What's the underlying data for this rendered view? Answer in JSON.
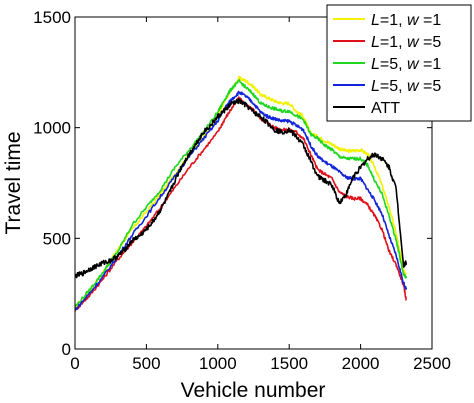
{
  "chart_data": {
    "type": "line",
    "xlabel": "Vehicle number",
    "ylabel": "Travel time",
    "xlim": [
      0,
      2500
    ],
    "ylim": [
      0,
      1500
    ],
    "xticks": [
      0,
      500,
      1000,
      1500,
      2000,
      2500
    ],
    "yticks": [
      0,
      500,
      1000,
      1500
    ],
    "xtick_labels": [
      "0",
      "500",
      "1000",
      "1500",
      "2000",
      "2500"
    ],
    "ytick_labels": [
      "0",
      "500",
      "1000",
      "1500"
    ],
    "grid": false,
    "legend_position": "top-right",
    "series": [
      {
        "name": "L=1, w=1",
        "label_parts": [
          [
            "L",
            true
          ],
          [
            "=1, ",
            false
          ],
          [
            "w",
            true
          ],
          [
            " =1",
            false
          ]
        ],
        "color": "#f2f200",
        "points": [
          [
            0,
            190
          ],
          [
            100,
            260
          ],
          [
            200,
            350
          ],
          [
            300,
            450
          ],
          [
            400,
            540
          ],
          [
            500,
            620
          ],
          [
            600,
            700
          ],
          [
            700,
            790
          ],
          [
            800,
            880
          ],
          [
            900,
            960
          ],
          [
            1000,
            1050
          ],
          [
            1050,
            1120
          ],
          [
            1100,
            1175
          ],
          [
            1150,
            1225
          ],
          [
            1200,
            1210
          ],
          [
            1250,
            1185
          ],
          [
            1300,
            1150
          ],
          [
            1350,
            1135
          ],
          [
            1400,
            1120
          ],
          [
            1450,
            1110
          ],
          [
            1500,
            1110
          ],
          [
            1550,
            1075
          ],
          [
            1600,
            1050
          ],
          [
            1650,
            975
          ],
          [
            1700,
            960
          ],
          [
            1750,
            940
          ],
          [
            1800,
            925
          ],
          [
            1850,
            905
          ],
          [
            1900,
            895
          ],
          [
            1950,
            895
          ],
          [
            2000,
            900
          ],
          [
            2050,
            880
          ],
          [
            2100,
            820
          ],
          [
            2150,
            740
          ],
          [
            2200,
            640
          ],
          [
            2250,
            520
          ],
          [
            2300,
            360
          ],
          [
            2320,
            340
          ]
        ]
      },
      {
        "name": "L=1, w=5",
        "label_parts": [
          [
            "L",
            true
          ],
          [
            "=1, ",
            false
          ],
          [
            "w",
            true
          ],
          [
            " =5",
            false
          ]
        ],
        "color": "#e0101a",
        "points": [
          [
            0,
            175
          ],
          [
            100,
            240
          ],
          [
            200,
            320
          ],
          [
            300,
            405
          ],
          [
            400,
            480
          ],
          [
            500,
            555
          ],
          [
            600,
            640
          ],
          [
            700,
            730
          ],
          [
            800,
            820
          ],
          [
            900,
            900
          ],
          [
            1000,
            980
          ],
          [
            1050,
            1040
          ],
          [
            1100,
            1090
          ],
          [
            1150,
            1135
          ],
          [
            1200,
            1100
          ],
          [
            1250,
            1080
          ],
          [
            1300,
            1040
          ],
          [
            1350,
            1020
          ],
          [
            1400,
            1000
          ],
          [
            1450,
            990
          ],
          [
            1500,
            990
          ],
          [
            1550,
            980
          ],
          [
            1600,
            950
          ],
          [
            1650,
            880
          ],
          [
            1700,
            810
          ],
          [
            1750,
            790
          ],
          [
            1800,
            770
          ],
          [
            1850,
            710
          ],
          [
            1900,
            690
          ],
          [
            1950,
            680
          ],
          [
            2000,
            680
          ],
          [
            2050,
            650
          ],
          [
            2100,
            600
          ],
          [
            2150,
            540
          ],
          [
            2200,
            440
          ],
          [
            2250,
            380
          ],
          [
            2300,
            290
          ],
          [
            2320,
            220
          ]
        ]
      },
      {
        "name": "L=5, w=1",
        "label_parts": [
          [
            "L",
            true
          ],
          [
            "=5, ",
            false
          ],
          [
            "w",
            true
          ],
          [
            " =1",
            false
          ]
        ],
        "color": "#1fd620",
        "points": [
          [
            0,
            190
          ],
          [
            100,
            265
          ],
          [
            200,
            350
          ],
          [
            300,
            440
          ],
          [
            400,
            560
          ],
          [
            500,
            640
          ],
          [
            600,
            720
          ],
          [
            700,
            820
          ],
          [
            800,
            900
          ],
          [
            900,
            980
          ],
          [
            1000,
            1070
          ],
          [
            1050,
            1130
          ],
          [
            1100,
            1180
          ],
          [
            1150,
            1210
          ],
          [
            1200,
            1180
          ],
          [
            1250,
            1150
          ],
          [
            1300,
            1110
          ],
          [
            1350,
            1095
          ],
          [
            1400,
            1085
          ],
          [
            1450,
            1075
          ],
          [
            1500,
            1075
          ],
          [
            1550,
            1055
          ],
          [
            1600,
            1035
          ],
          [
            1650,
            970
          ],
          [
            1700,
            950
          ],
          [
            1750,
            920
          ],
          [
            1800,
            900
          ],
          [
            1850,
            870
          ],
          [
            1900,
            860
          ],
          [
            1950,
            860
          ],
          [
            2000,
            860
          ],
          [
            2050,
            830
          ],
          [
            2100,
            760
          ],
          [
            2150,
            700
          ],
          [
            2200,
            600
          ],
          [
            2250,
            490
          ],
          [
            2300,
            340
          ],
          [
            2320,
            320
          ]
        ]
      },
      {
        "name": "L=5, w=5",
        "label_parts": [
          [
            "L",
            true
          ],
          [
            "=5, ",
            false
          ],
          [
            "w",
            true
          ],
          [
            " =5",
            false
          ]
        ],
        "color": "#1224d8",
        "points": [
          [
            0,
            175
          ],
          [
            100,
            250
          ],
          [
            200,
            330
          ],
          [
            300,
            420
          ],
          [
            400,
            515
          ],
          [
            500,
            600
          ],
          [
            600,
            690
          ],
          [
            700,
            780
          ],
          [
            800,
            870
          ],
          [
            900,
            950
          ],
          [
            1000,
            1030
          ],
          [
            1050,
            1090
          ],
          [
            1100,
            1130
          ],
          [
            1150,
            1160
          ],
          [
            1200,
            1140
          ],
          [
            1250,
            1110
          ],
          [
            1300,
            1070
          ],
          [
            1350,
            1050
          ],
          [
            1400,
            1040
          ],
          [
            1450,
            1030
          ],
          [
            1500,
            1030
          ],
          [
            1550,
            1010
          ],
          [
            1600,
            990
          ],
          [
            1650,
            920
          ],
          [
            1700,
            870
          ],
          [
            1750,
            845
          ],
          [
            1800,
            825
          ],
          [
            1850,
            800
          ],
          [
            1900,
            775
          ],
          [
            1950,
            770
          ],
          [
            2000,
            770
          ],
          [
            2050,
            720
          ],
          [
            2100,
            670
          ],
          [
            2150,
            610
          ],
          [
            2200,
            510
          ],
          [
            2250,
            420
          ],
          [
            2300,
            300
          ],
          [
            2320,
            270
          ]
        ]
      },
      {
        "name": "ATT",
        "label_parts": [
          [
            "ATT",
            false
          ]
        ],
        "color": "#000000",
        "points": [
          [
            0,
            330
          ],
          [
            50,
            340
          ],
          [
            100,
            360
          ],
          [
            150,
            375
          ],
          [
            200,
            390
          ],
          [
            250,
            400
          ],
          [
            300,
            420
          ],
          [
            350,
            450
          ],
          [
            400,
            490
          ],
          [
            450,
            510
          ],
          [
            500,
            540
          ],
          [
            550,
            580
          ],
          [
            600,
            630
          ],
          [
            650,
            690
          ],
          [
            700,
            760
          ],
          [
            750,
            830
          ],
          [
            800,
            880
          ],
          [
            850,
            930
          ],
          [
            900,
            980
          ],
          [
            950,
            1010
          ],
          [
            1000,
            1050
          ],
          [
            1050,
            1080
          ],
          [
            1100,
            1110
          ],
          [
            1150,
            1120
          ],
          [
            1200,
            1100
          ],
          [
            1250,
            1070
          ],
          [
            1300,
            1050
          ],
          [
            1350,
            1020
          ],
          [
            1400,
            990
          ],
          [
            1450,
            980
          ],
          [
            1500,
            990
          ],
          [
            1550,
            960
          ],
          [
            1600,
            920
          ],
          [
            1650,
            850
          ],
          [
            1700,
            780
          ],
          [
            1750,
            760
          ],
          [
            1800,
            740
          ],
          [
            1850,
            660
          ],
          [
            1900,
            700
          ],
          [
            1950,
            780
          ],
          [
            2000,
            820
          ],
          [
            2050,
            860
          ],
          [
            2100,
            880
          ],
          [
            2150,
            860
          ],
          [
            2200,
            820
          ],
          [
            2250,
            720
          ],
          [
            2300,
            380
          ],
          [
            2320,
            390
          ]
        ]
      }
    ]
  }
}
